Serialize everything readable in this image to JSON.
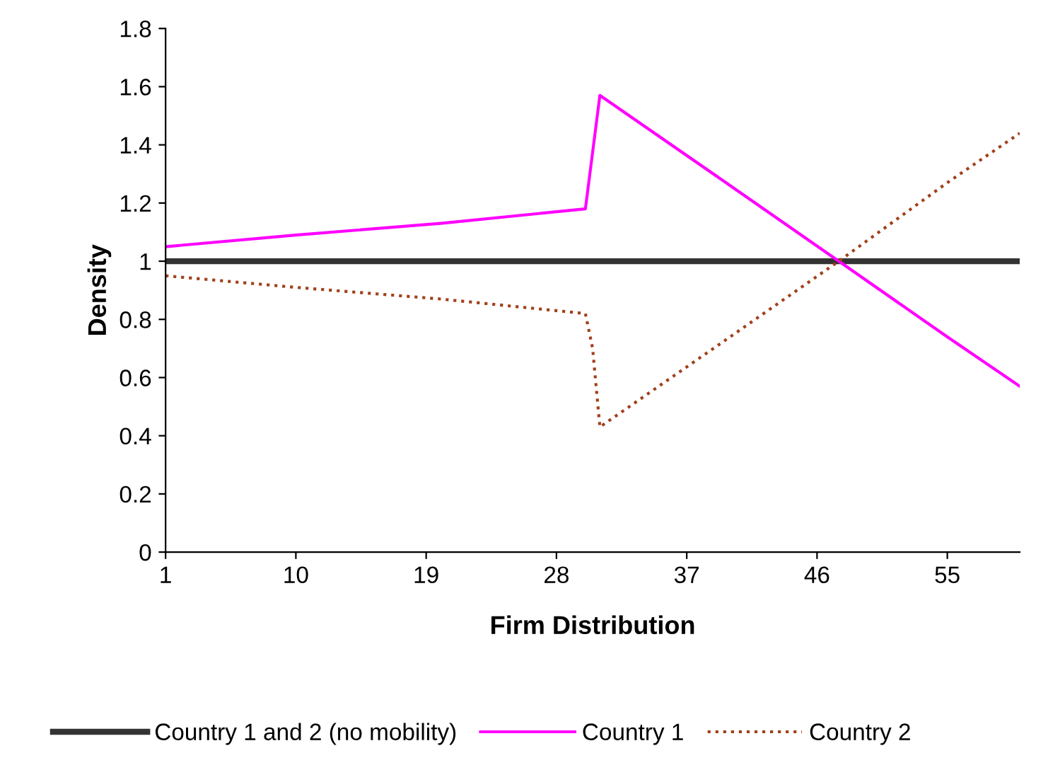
{
  "chart_data": {
    "type": "line",
    "xlabel": "Firm Distribution",
    "ylabel": "Density",
    "xlim": [
      1,
      60
    ],
    "xticks": [
      1,
      10,
      19,
      28,
      37,
      46,
      55
    ],
    "ylim": [
      0,
      1.8
    ],
    "yticks": [
      0,
      0.2,
      0.4,
      0.6,
      0.8,
      1,
      1.2,
      1.4,
      1.6,
      1.8
    ],
    "grid": false,
    "legend": "bottom",
    "marker": "none",
    "series": [
      {
        "name": "Country 1 and 2 (no mobility)",
        "color": "#333333",
        "line_style": "solid",
        "x": [
          1,
          60
        ],
        "values": [
          1,
          1
        ]
      },
      {
        "name": "Country 1",
        "color": "#ff00ff",
        "line_style": "solid",
        "x": [
          1,
          10,
          20,
          30,
          31,
          40,
          47.5,
          55,
          60
        ],
        "values": [
          1.05,
          1.09,
          1.13,
          1.18,
          1.57,
          1.26,
          1.0,
          0.74,
          0.57
        ]
      },
      {
        "name": "Country 2",
        "color": "#a0401a",
        "line_style": "dotted",
        "x": [
          1,
          10,
          20,
          30,
          30.5,
          31,
          40,
          47.5,
          55,
          60
        ],
        "values": [
          0.95,
          0.91,
          0.87,
          0.82,
          0.7,
          0.43,
          0.74,
          1.0,
          1.27,
          1.44
        ]
      }
    ]
  }
}
